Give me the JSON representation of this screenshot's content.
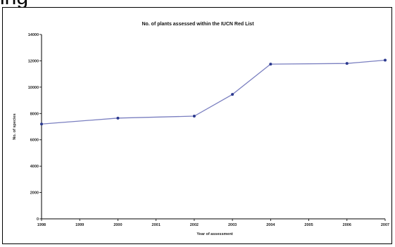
{
  "page": {
    "top_partial_text": "ing"
  },
  "chart_data": {
    "type": "line",
    "title": "No. of plants assessed within the IUCN Red List",
    "xlabel": "Year of assessment",
    "ylabel": "No. of species",
    "categories": [
      "1998",
      "1999",
      "2000",
      "2001",
      "2002",
      "2003",
      "2004",
      "2005",
      "2006",
      "2007"
    ],
    "series": [
      {
        "values": [
          7200,
          null,
          7650,
          null,
          7800,
          9450,
          11750,
          null,
          11800,
          12050
        ]
      }
    ],
    "ylim": [
      0,
      14000
    ],
    "yticks": [
      0,
      2000,
      4000,
      6000,
      8000,
      10000,
      12000,
      14000
    ],
    "ytick_labels": [
      "0",
      "2000",
      "4000",
      "6000",
      "8000",
      "10000",
      "12000",
      "14000"
    ],
    "grid": false,
    "legend": false,
    "line_color": "#7a7fc0",
    "marker_color": "#2c3a8f"
  }
}
